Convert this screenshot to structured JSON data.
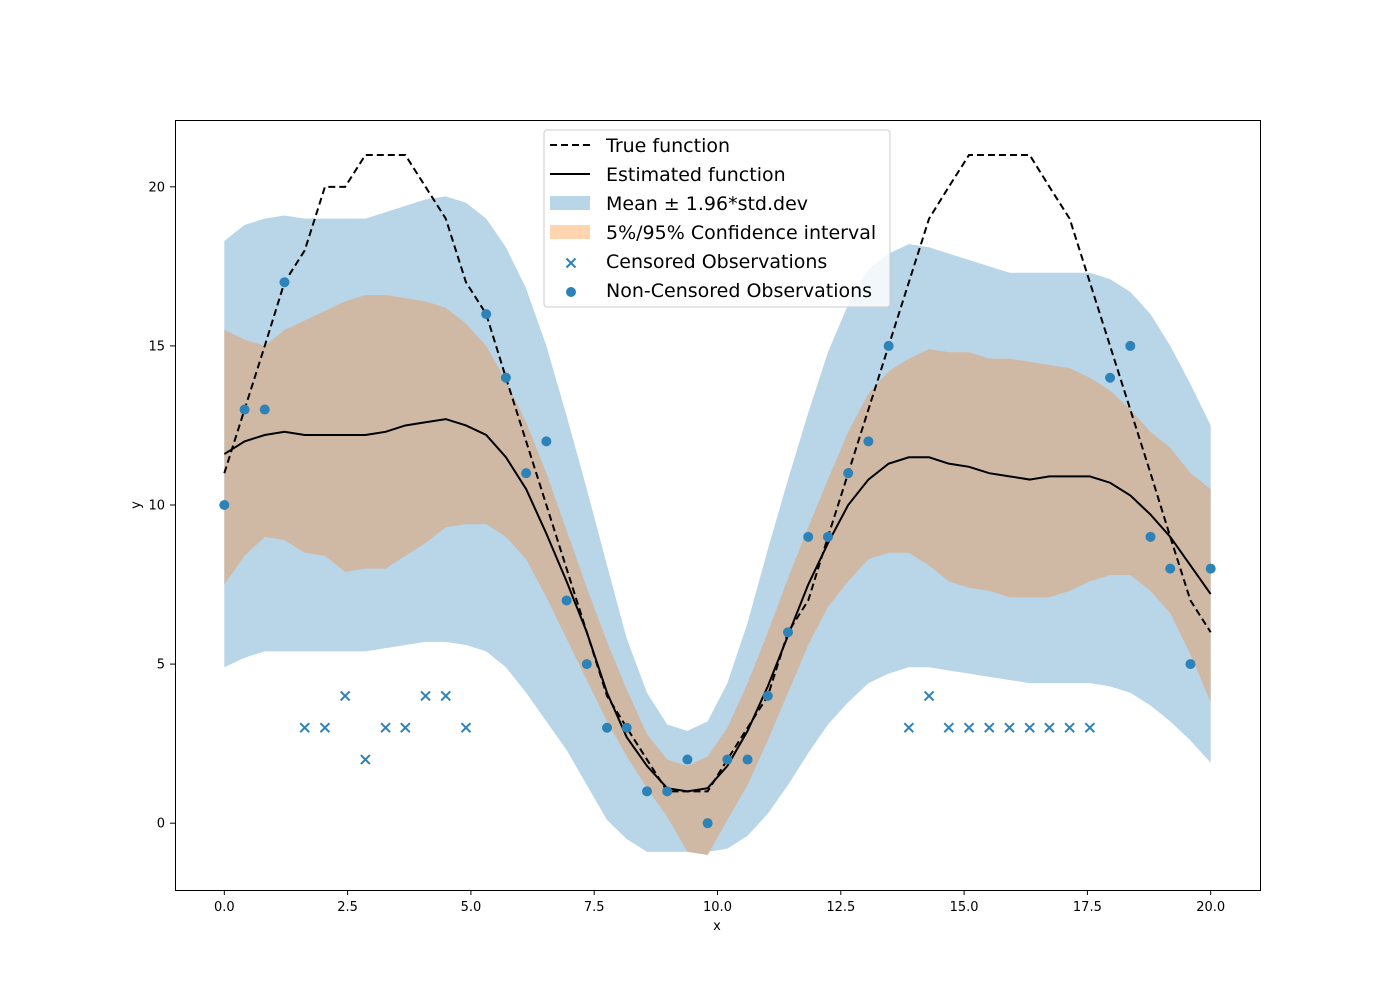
{
  "chart_data": {
    "type": "line",
    "xlabel": "x",
    "ylabel": "y",
    "xlim": [
      -1.0,
      21.0
    ],
    "ylim": [
      -2.1,
      22.1
    ],
    "xticks": [
      0.0,
      2.5,
      5.0,
      7.5,
      10.0,
      12.5,
      15.0,
      17.5,
      20.0
    ],
    "xtick_labels": [
      "0.0",
      "2.5",
      "5.0",
      "7.5",
      "10.0",
      "12.5",
      "15.0",
      "17.5",
      "20.0"
    ],
    "yticks": [
      0,
      5,
      10,
      15,
      20
    ],
    "ytick_labels": [
      "0",
      "5",
      "10",
      "15",
      "20"
    ],
    "grid": false,
    "legend_placement": "top-center",
    "colors": {
      "band_std": "#b9d5e8",
      "band_ci": "#cfb9a5",
      "band_ci_legend": "#ffd5b0",
      "points": "#2d82b8",
      "lines": "#000000"
    },
    "legend": [
      {
        "label": "True function",
        "kind": "dashed-line"
      },
      {
        "label": "Estimated function",
        "kind": "solid-line"
      },
      {
        "label": "Mean ± 1.96*std.dev",
        "kind": "patch-std"
      },
      {
        "label": "5%/95% Confidence interval",
        "kind": "patch-ci"
      },
      {
        "label": "Censored Observations",
        "kind": "marker-x"
      },
      {
        "label": "Non-Censored Observations",
        "kind": "marker-o"
      }
    ],
    "x_grid": [
      0.0,
      0.41,
      0.82,
      1.22,
      1.63,
      2.04,
      2.45,
      2.86,
      3.27,
      3.67,
      4.08,
      4.49,
      4.9,
      5.31,
      5.71,
      6.12,
      6.53,
      6.94,
      7.35,
      7.76,
      8.16,
      8.57,
      8.98,
      9.39,
      9.8,
      10.2,
      10.61,
      11.02,
      11.43,
      11.84,
      12.24,
      12.65,
      13.06,
      13.47,
      13.88,
      14.29,
      14.69,
      15.1,
      15.51,
      15.92,
      16.33,
      16.73,
      17.14,
      17.55,
      17.96,
      18.37,
      18.78,
      19.18,
      19.59,
      20.0
    ],
    "series": [
      {
        "name": "True function",
        "x": [
          0.0,
          0.41,
          0.82,
          1.22,
          1.63,
          2.04,
          2.45,
          2.86,
          3.27,
          3.67,
          4.08,
          4.49,
          4.9,
          5.31,
          5.71,
          6.12,
          6.53,
          6.94,
          7.35,
          7.76,
          8.16,
          8.57,
          8.98,
          9.39,
          9.8,
          10.2,
          10.61,
          11.02,
          11.43,
          11.84,
          12.24,
          12.65,
          13.06,
          13.47,
          13.88,
          14.29,
          14.69,
          15.1,
          15.51,
          15.92,
          16.33,
          16.73,
          17.14,
          17.55,
          17.96,
          18.37,
          18.78,
          19.18,
          19.59,
          20.0
        ],
        "y": [
          11,
          13,
          15,
          17,
          18,
          20,
          20,
          21,
          21,
          21,
          20,
          19,
          17,
          16,
          14,
          12,
          10,
          8,
          6,
          4,
          3,
          2,
          1,
          1,
          1,
          2,
          3,
          4,
          6,
          7,
          9,
          11,
          13,
          15,
          17,
          19,
          20,
          21,
          21,
          21,
          21,
          20,
          19,
          17,
          15,
          13,
          11,
          9,
          7,
          6
        ]
      },
      {
        "name": "Estimated function",
        "x": [
          0.0,
          0.41,
          0.82,
          1.22,
          1.63,
          2.04,
          2.45,
          2.86,
          3.27,
          3.67,
          4.08,
          4.49,
          4.9,
          5.31,
          5.71,
          6.12,
          6.53,
          6.94,
          7.35,
          7.76,
          8.16,
          8.57,
          8.98,
          9.39,
          9.8,
          10.2,
          10.61,
          11.02,
          11.43,
          11.84,
          12.24,
          12.65,
          13.06,
          13.47,
          13.88,
          14.29,
          14.69,
          15.1,
          15.51,
          15.92,
          16.33,
          16.73,
          17.14,
          17.55,
          17.96,
          18.37,
          18.78,
          19.18,
          19.59,
          20.0
        ],
        "y": [
          11.6,
          12.0,
          12.2,
          12.3,
          12.2,
          12.2,
          12.2,
          12.2,
          12.3,
          12.5,
          12.6,
          12.7,
          12.5,
          12.2,
          11.5,
          10.5,
          9.1,
          7.6,
          6.0,
          4.1,
          2.7,
          1.8,
          1.1,
          1.0,
          1.1,
          1.8,
          2.9,
          4.3,
          5.9,
          7.5,
          8.8,
          10.0,
          10.8,
          11.3,
          11.5,
          11.5,
          11.3,
          11.2,
          11.0,
          10.9,
          10.8,
          10.9,
          10.9,
          10.9,
          10.7,
          10.3,
          9.7,
          9.0,
          8.1,
          7.2
        ]
      },
      {
        "name": "Mean ± 1.96*std.dev",
        "x": [
          0.0,
          0.41,
          0.82,
          1.22,
          1.63,
          2.04,
          2.45,
          2.86,
          3.27,
          3.67,
          4.08,
          4.49,
          4.9,
          5.31,
          5.71,
          6.12,
          6.53,
          6.94,
          7.35,
          7.76,
          8.16,
          8.57,
          8.98,
          9.39,
          9.8,
          10.2,
          10.61,
          11.02,
          11.43,
          11.84,
          12.24,
          12.65,
          13.06,
          13.47,
          13.88,
          14.29,
          14.69,
          15.1,
          15.51,
          15.92,
          16.33,
          16.73,
          17.14,
          17.55,
          17.96,
          18.37,
          18.78,
          19.18,
          19.59,
          20.0
        ],
        "upper": [
          18.3,
          18.8,
          19.0,
          19.1,
          19.0,
          19.0,
          19.0,
          19.0,
          19.2,
          19.4,
          19.6,
          19.7,
          19.5,
          19.0,
          18.1,
          16.8,
          15.0,
          12.8,
          10.5,
          8.1,
          5.8,
          4.1,
          3.1,
          2.9,
          3.2,
          4.4,
          6.3,
          8.6,
          10.8,
          12.9,
          14.8,
          16.3,
          17.4,
          17.9,
          18.2,
          18.1,
          17.9,
          17.7,
          17.5,
          17.3,
          17.3,
          17.3,
          17.3,
          17.3,
          17.1,
          16.7,
          16.0,
          15.0,
          13.8,
          12.5
        ],
        "lower": [
          4.9,
          5.2,
          5.4,
          5.4,
          5.4,
          5.4,
          5.4,
          5.4,
          5.5,
          5.6,
          5.7,
          5.7,
          5.6,
          5.4,
          4.9,
          4.1,
          3.2,
          2.3,
          1.2,
          0.1,
          -0.5,
          -0.9,
          -0.9,
          -0.9,
          -0.9,
          -0.8,
          -0.4,
          0.3,
          1.2,
          2.2,
          3.1,
          3.8,
          4.4,
          4.7,
          4.9,
          4.9,
          4.8,
          4.7,
          4.6,
          4.5,
          4.4,
          4.4,
          4.4,
          4.4,
          4.3,
          4.1,
          3.7,
          3.2,
          2.6,
          1.9
        ]
      },
      {
        "name": "5%/95% Confidence interval",
        "x": [
          0.0,
          0.41,
          0.82,
          1.22,
          1.63,
          2.04,
          2.45,
          2.86,
          3.27,
          3.67,
          4.08,
          4.49,
          4.9,
          5.31,
          5.71,
          6.12,
          6.53,
          6.94,
          7.35,
          7.76,
          8.16,
          8.57,
          8.98,
          9.39,
          9.8,
          10.2,
          10.61,
          11.02,
          11.43,
          11.84,
          12.24,
          12.65,
          13.06,
          13.47,
          13.88,
          14.29,
          14.69,
          15.1,
          15.51,
          15.92,
          16.33,
          16.73,
          17.14,
          17.55,
          17.96,
          18.37,
          18.78,
          19.18,
          19.59,
          20.0
        ],
        "upper": [
          15.5,
          15.2,
          15.0,
          15.5,
          15.8,
          16.1,
          16.4,
          16.6,
          16.6,
          16.5,
          16.4,
          16.2,
          15.7,
          15.0,
          13.9,
          12.6,
          11.0,
          9.2,
          7.4,
          5.7,
          4.2,
          2.8,
          2.0,
          1.8,
          2.1,
          3.0,
          4.4,
          6.0,
          7.7,
          9.3,
          10.8,
          12.3,
          13.5,
          14.2,
          14.6,
          14.9,
          14.8,
          14.8,
          14.6,
          14.6,
          14.5,
          14.4,
          14.3,
          14.0,
          13.6,
          13.0,
          12.3,
          11.8,
          11.0,
          10.5
        ],
        "lower": [
          7.5,
          8.4,
          9.0,
          8.9,
          8.5,
          8.4,
          7.9,
          8.0,
          8.0,
          8.4,
          8.8,
          9.3,
          9.4,
          9.4,
          9.0,
          8.3,
          7.1,
          5.8,
          4.5,
          3.2,
          2.1,
          1.1,
          0.2,
          -0.9,
          -1.0,
          0.1,
          1.2,
          2.6,
          4.1,
          5.6,
          6.8,
          7.6,
          8.3,
          8.5,
          8.5,
          8.1,
          7.6,
          7.4,
          7.3,
          7.1,
          7.1,
          7.1,
          7.3,
          7.6,
          7.8,
          7.8,
          7.3,
          6.6,
          5.3,
          3.8
        ]
      },
      {
        "name": "Censored Observations",
        "x": [
          1.63,
          2.04,
          2.45,
          2.86,
          3.27,
          3.67,
          4.08,
          4.49,
          4.9,
          13.88,
          14.29,
          14.69,
          15.1,
          15.51,
          15.92,
          16.33,
          16.73,
          17.14,
          17.55
        ],
        "y": [
          3,
          3,
          4,
          2,
          3,
          3,
          4,
          4,
          3,
          3,
          4,
          3,
          3,
          3,
          3,
          3,
          3,
          3,
          3
        ]
      },
      {
        "name": "Non-Censored Observations",
        "x": [
          0.0,
          0.41,
          0.82,
          1.22,
          5.31,
          5.71,
          6.12,
          6.53,
          6.94,
          7.35,
          7.76,
          8.16,
          8.57,
          8.98,
          9.39,
          9.8,
          10.2,
          10.61,
          11.02,
          11.43,
          11.84,
          12.24,
          12.65,
          13.06,
          13.47,
          17.96,
          18.37,
          18.78,
          19.18,
          19.59,
          20.0
        ],
        "y": [
          10,
          13,
          13,
          17,
          16,
          14,
          11,
          12,
          7,
          5,
          3,
          3,
          1,
          1,
          2,
          0,
          2,
          2,
          4,
          6,
          9,
          9,
          11,
          12,
          15,
          14,
          15,
          9,
          8,
          5,
          8
        ]
      }
    ]
  }
}
